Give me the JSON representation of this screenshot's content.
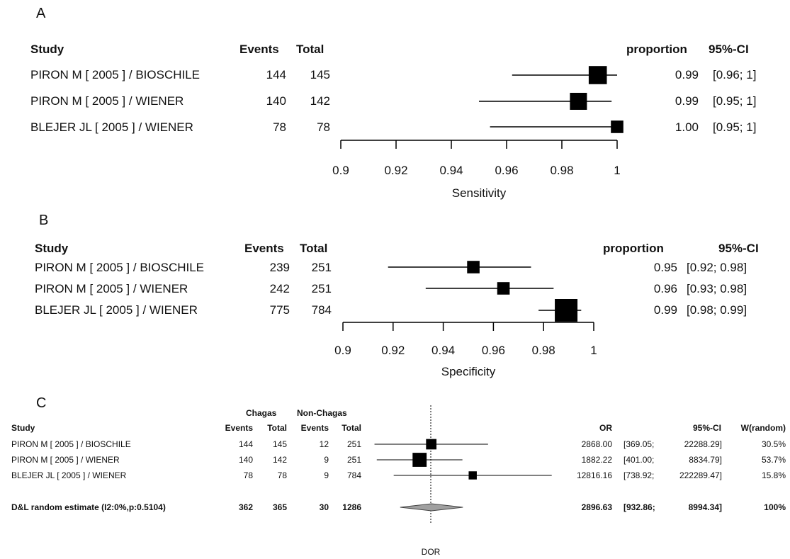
{
  "chart_data": [
    {
      "panel": "A",
      "type": "forest",
      "headers": {
        "study": "Study",
        "events": "Events",
        "total": "Total",
        "estimate": "proportion",
        "ci": "95%-CI"
      },
      "rows": [
        {
          "study": "PIRON M [ 2005 ] / BIOSCHILE",
          "events": "144",
          "total": "145",
          "est": 0.993,
          "lo": 0.962,
          "hi": 1.0,
          "weight": 0.55,
          "est_label": "0.99",
          "ci_label": "[0.96; 1]"
        },
        {
          "study": "PIRON M [ 2005 ] / WIENER",
          "events": "140",
          "total": "142",
          "est": 0.986,
          "lo": 0.95,
          "hi": 0.998,
          "weight": 0.5,
          "est_label": "0.99",
          "ci_label": "[0.95; 1]"
        },
        {
          "study": "BLEJER JL [ 2005 ] / WIENER",
          "events": "78",
          "total": "78",
          "est": 1.0,
          "lo": 0.954,
          "hi": 1.0,
          "weight": 0.3,
          "est_label": "1.00",
          "ci_label": "[0.95; 1]"
        }
      ],
      "xlim": [
        0.9,
        1.0
      ],
      "ticks": [
        0.9,
        0.92,
        0.94,
        0.96,
        0.98,
        1
      ],
      "tick_labels": [
        "0.9",
        "0.92",
        "0.94",
        "0.96",
        "0.98",
        "1"
      ],
      "xlabel": "Sensitivity"
    },
    {
      "panel": "B",
      "type": "forest",
      "headers": {
        "study": "Study",
        "events": "Events",
        "total": "Total",
        "estimate": "proportion",
        "ci": "95%-CI"
      },
      "rows": [
        {
          "study": "PIRON M [ 2005 ] / BIOSCHILE",
          "events": "239",
          "total": "251",
          "est": 0.952,
          "lo": 0.918,
          "hi": 0.975,
          "weight": 0.3,
          "est_label": "0.95",
          "ci_label": "[0.92; 0.98]"
        },
        {
          "study": "PIRON M [ 2005 ] / WIENER",
          "events": "242",
          "total": "251",
          "est": 0.964,
          "lo": 0.933,
          "hi": 0.984,
          "weight": 0.3,
          "est_label": "0.96",
          "ci_label": "[0.93; 0.98]"
        },
        {
          "study": "BLEJER JL [ 2005 ] / WIENER",
          "events": "775",
          "total": "784",
          "est": 0.989,
          "lo": 0.978,
          "hi": 0.995,
          "weight": 0.75,
          "est_label": "0.99",
          "ci_label": "[0.98; 0.99]"
        }
      ],
      "xlim": [
        0.9,
        1.0
      ],
      "ticks": [
        0.9,
        0.92,
        0.94,
        0.96,
        0.98,
        1
      ],
      "tick_labels": [
        "0.9",
        "0.92",
        "0.94",
        "0.96",
        "0.98",
        "1"
      ],
      "xlabel": "Specificity"
    },
    {
      "panel": "C",
      "type": "forest",
      "group_headers": {
        "chagas": "Chagas",
        "nonchagas": "Non-Chagas"
      },
      "headers": {
        "study": "Study",
        "events1": "Events",
        "total1": "Total",
        "events2": "Events",
        "total2": "Total",
        "or": "OR",
        "ci": "95%-CI",
        "weight": "W(random)"
      },
      "rows": [
        {
          "study": "PIRON M [ 2005 ] / BIOSCHILE",
          "events1": "144",
          "total1": "145",
          "events2": "12",
          "total2": "251",
          "est": 2868.0,
          "lo": 369.05,
          "hi": 22288.29,
          "or_label": "2868.00",
          "ci_lo_label": "[369.05;",
          "ci_hi_label": "22288.29]",
          "weight_label": "30.5%",
          "weight": 0.305
        },
        {
          "study": "PIRON M [ 2005 ] / WIENER",
          "events1": "140",
          "total1": "142",
          "events2": "9",
          "total2": "251",
          "est": 1882.22,
          "lo": 401.0,
          "hi": 8834.79,
          "or_label": "1882.22",
          "ci_lo_label": "[401.00;",
          "ci_hi_label": "8834.79]",
          "weight_label": "53.7%",
          "weight": 0.537
        },
        {
          "study": "BLEJER JL [ 2005 ] / WIENER",
          "events1": "78",
          "total1": "78",
          "events2": "9",
          "total2": "784",
          "est": 12816.16,
          "lo": 738.92,
          "hi": 222289.47,
          "or_label": "12816.16",
          "ci_lo_label": "[738.92;",
          "ci_hi_label": "222289.47]",
          "weight_label": "15.8%",
          "weight": 0.158
        }
      ],
      "summary": {
        "study": "D&L random estimate (I2:0%,p:0.5104)",
        "events1": "362",
        "total1": "365",
        "events2": "30",
        "total2": "1286",
        "est": 2896.63,
        "lo": 932.86,
        "hi": 8994.34,
        "or_label": "2896.63",
        "ci_lo_label": "[932.86;",
        "ci_hi_label": "8994.34]",
        "weight_label": "100%"
      },
      "scale": "log",
      "xlabel": "DOR"
    }
  ]
}
